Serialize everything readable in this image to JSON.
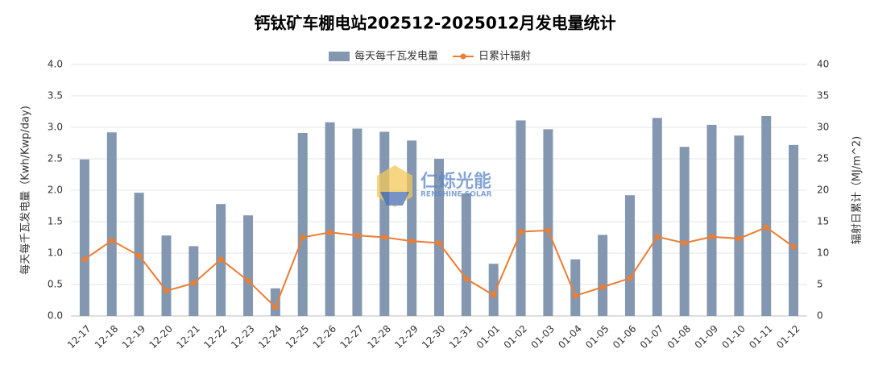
{
  "chart_data": {
    "type": "bar-line",
    "title": "钙钛矿车棚电站202512-2025012月发电量统计",
    "categories": [
      "12-17",
      "12-18",
      "12-19",
      "12-20",
      "12-21",
      "12-22",
      "12-23",
      "12-24",
      "12-25",
      "12-26",
      "12-27",
      "12-28",
      "12-29",
      "12-30",
      "12-31",
      "01-01",
      "01-02",
      "01-03",
      "01-04",
      "01-05",
      "01-06",
      "01-07",
      "01-08",
      "01-09",
      "01-10",
      "01-11",
      "01-12"
    ],
    "series": [
      {
        "name": "每天每千瓦发电量",
        "type": "bar",
        "color": "#8497b0",
        "axis": "y",
        "values": [
          2.49,
          2.92,
          1.96,
          1.28,
          1.11,
          1.78,
          1.6,
          0.44,
          2.91,
          3.08,
          2.98,
          2.93,
          2.79,
          2.5,
          1.95,
          0.83,
          3.11,
          2.97,
          0.9,
          1.29,
          1.92,
          3.15,
          2.69,
          3.04,
          2.87,
          3.18,
          2.72
        ]
      },
      {
        "name": "日累计辐射",
        "type": "line",
        "color": "#ed7d31",
        "axis": "y2",
        "values": [
          9.0,
          12.0,
          9.6,
          4.0,
          5.2,
          9.0,
          5.6,
          1.4,
          12.5,
          13.3,
          12.8,
          12.5,
          11.9,
          11.6,
          5.9,
          3.3,
          13.4,
          13.6,
          3.2,
          4.6,
          6.0,
          12.6,
          11.6,
          12.6,
          12.3,
          14.1,
          11.0
        ]
      }
    ],
    "ylabel": "每天每千瓦发电量（Kwh/Kwp/day)",
    "y2label": "辐射日累计（MJ/m^2)",
    "ylim": [
      0,
      4
    ],
    "yticks": [
      {
        "value": 0,
        "label": "0.0"
      },
      {
        "value": 0.5,
        "label": "0.5"
      },
      {
        "value": 1,
        "label": "1.0"
      },
      {
        "value": 1.5,
        "label": "1.5"
      },
      {
        "value": 2,
        "label": "2.0"
      },
      {
        "value": 2.5,
        "label": "2.5"
      },
      {
        "value": 3,
        "label": "3.0"
      },
      {
        "value": 3.5,
        "label": "3.5"
      },
      {
        "value": 4,
        "label": "4.0"
      }
    ],
    "y2lim": [
      0,
      40
    ],
    "y2ticks": [
      0,
      5,
      10,
      15,
      20,
      25,
      30,
      35,
      40
    ],
    "grid": true,
    "legend": "top",
    "watermark": {
      "name": "仁烁光能",
      "sub": "RENSHINE SOLAR"
    }
  }
}
